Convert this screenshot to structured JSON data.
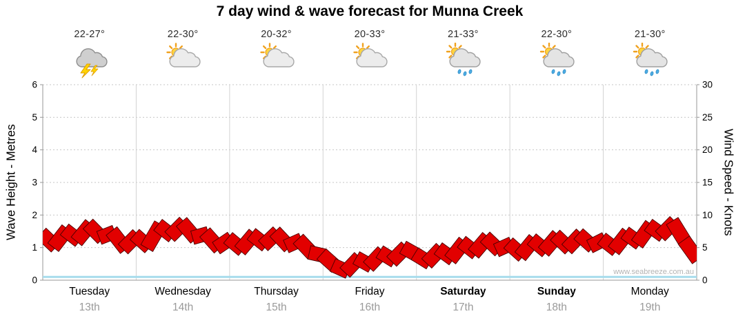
{
  "chart_data": {
    "type": "line",
    "title": "7 day wind & wave forecast for Munna Creek",
    "watermark": "www.seabreeze.com.au",
    "left_axis": {
      "label": "Wave Height - Metres",
      "min": 0,
      "max": 6,
      "ticks": [
        0,
        1,
        2,
        3,
        4,
        5,
        6
      ]
    },
    "right_axis": {
      "label": "Wind Speed - Knots",
      "min": 0,
      "max": 30,
      "ticks": [
        0,
        5,
        10,
        15,
        20,
        25,
        30
      ]
    },
    "grid": true,
    "days": [
      {
        "name": "Tuesday",
        "date": "13th",
        "temp": "22-27°",
        "icon": "thunderstorm"
      },
      {
        "name": "Wednesday",
        "date": "14th",
        "temp": "22-30°",
        "icon": "sun-cloud"
      },
      {
        "name": "Thursday",
        "date": "15th",
        "temp": "20-32°",
        "icon": "sun-cloud"
      },
      {
        "name": "Friday",
        "date": "16th",
        "temp": "20-33°",
        "icon": "sun-cloud"
      },
      {
        "name": "Saturday",
        "date": "17th",
        "temp": "21-33°",
        "icon": "sun-cloud-rain"
      },
      {
        "name": "Sunday",
        "date": "18th",
        "temp": "22-30°",
        "icon": "sun-cloud-rain"
      },
      {
        "name": "Monday",
        "date": "19th",
        "temp": "21-30°",
        "icon": "sun-cloud-rain"
      }
    ],
    "wind_series": {
      "name": "Wind Speed",
      "unit": "knots",
      "color": "#e20000",
      "points_per_day": 8,
      "values": [
        7.0,
        5.3,
        7.6,
        6.2,
        8.4,
        6.6,
        7.3,
        5.0,
        6.8,
        5.2,
        8.3,
        6.9,
        8.7,
        6.6,
        7.1,
        5.1,
        6.3,
        4.8,
        6.9,
        5.5,
        7.2,
        5.3,
        6.1,
        4.2,
        3.8,
        2.2,
        1.4,
        3.3,
        2.3,
        4.2,
        3.1,
        4.9,
        3.9,
        2.8,
        4.7,
        3.4,
        5.7,
        4.3,
        6.4,
        4.7,
        5.5,
        3.9,
        6.1,
        4.6,
        6.7,
        5.0,
        6.9,
        5.3,
        6.2,
        4.8,
        7.1,
        5.8,
        8.3,
        7.0,
        8.8,
        5.9,
        3.4
      ]
    },
    "wave_series": {
      "name": "Wave Height",
      "unit": "metres",
      "color": "#a6dcec",
      "constant_value": 0.1
    }
  }
}
